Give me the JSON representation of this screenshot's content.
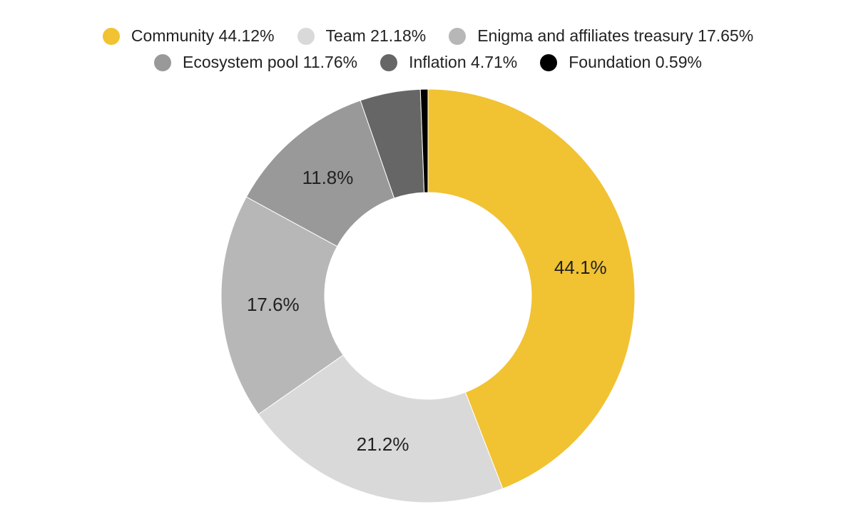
{
  "chart_data": {
    "type": "pie",
    "title": "",
    "legend_position": "top",
    "slices": [
      {
        "name": "Community",
        "value": 44.12,
        "legend_label": "Community 44.12%",
        "data_label": "44.1%",
        "color": "#F1C232"
      },
      {
        "name": "Team",
        "value": 21.18,
        "legend_label": "Team 21.18%",
        "data_label": "21.2%",
        "color": "#D9D9D9"
      },
      {
        "name": "Enigma and affiliates treasury",
        "value": 17.65,
        "legend_label": "Enigma and affiliates treasury 17.65%",
        "data_label": "17.6%",
        "color": "#B7B7B7"
      },
      {
        "name": "Ecosystem pool",
        "value": 11.76,
        "legend_label": "Ecosystem pool 11.76%",
        "data_label": "11.8%",
        "color": "#999999"
      },
      {
        "name": "Inflation",
        "value": 4.71,
        "legend_label": "Inflation 4.71%",
        "data_label": "",
        "color": "#666666"
      },
      {
        "name": "Foundation",
        "value": 0.59,
        "legend_label": "Foundation 0.59%",
        "data_label": "",
        "color": "#000000"
      }
    ]
  }
}
